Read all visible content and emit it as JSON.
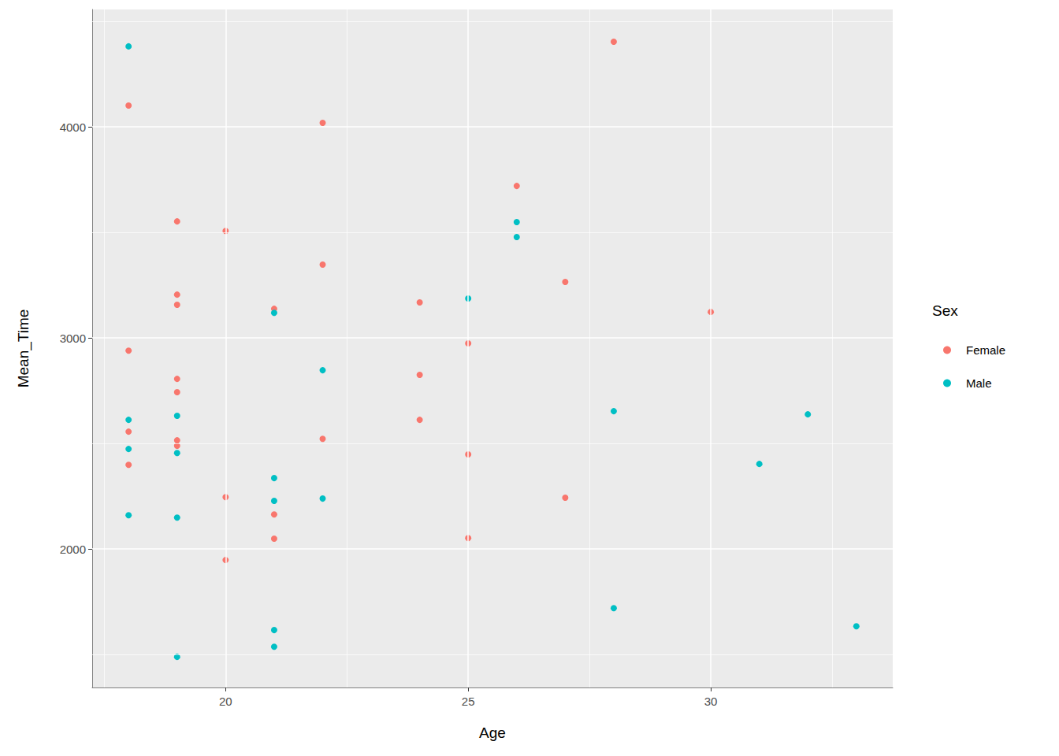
{
  "chart_data": {
    "type": "scatter",
    "x_label": "Age",
    "y_label": "Mean_Time",
    "legend_title": "Sex",
    "legend": "right",
    "grid": true,
    "xlim": [
      17.25,
      33.75
    ],
    "xticks": [
      20,
      25,
      30
    ],
    "ylim": [
      1344,
      4556
    ],
    "yticks": [
      2000,
      3000,
      4000
    ],
    "series": [
      {
        "name": "Female",
        "color": "#F8766D",
        "marker": "circle",
        "x": [
          18,
          18,
          18,
          18,
          19,
          19,
          19,
          19,
          19,
          19,
          19,
          20,
          20,
          20,
          21,
          21,
          21,
          22,
          22,
          22,
          24,
          24,
          24,
          25,
          25,
          25,
          26,
          27,
          27,
          28,
          30
        ],
        "values": [
          4101,
          2940,
          2556,
          2399,
          3552,
          3205,
          3157,
          2806,
          2743,
          2515,
          2489,
          3507,
          2246,
          1948,
          3138,
          2164,
          2049,
          4019,
          3347,
          2522,
          3168,
          2825,
          2612,
          2974,
          2448,
          2052,
          3720,
          3265,
          2243,
          4403,
          3123
        ]
      },
      {
        "name": "Male",
        "color": "#00BFC4",
        "marker": "circle",
        "x": [
          18,
          18,
          18,
          18,
          19,
          19,
          19,
          19,
          21,
          21,
          21,
          21,
          21,
          22,
          22,
          25,
          26,
          26,
          28,
          28,
          31,
          32,
          33
        ],
        "values": [
          4381,
          2612,
          2474,
          2160,
          2631,
          2455,
          2149,
          1489,
          3119,
          2336,
          2228,
          1616,
          1537,
          2847,
          2239,
          3187,
          3549,
          3478,
          2653,
          1720,
          2403,
          2638,
          1634
        ]
      }
    ]
  }
}
